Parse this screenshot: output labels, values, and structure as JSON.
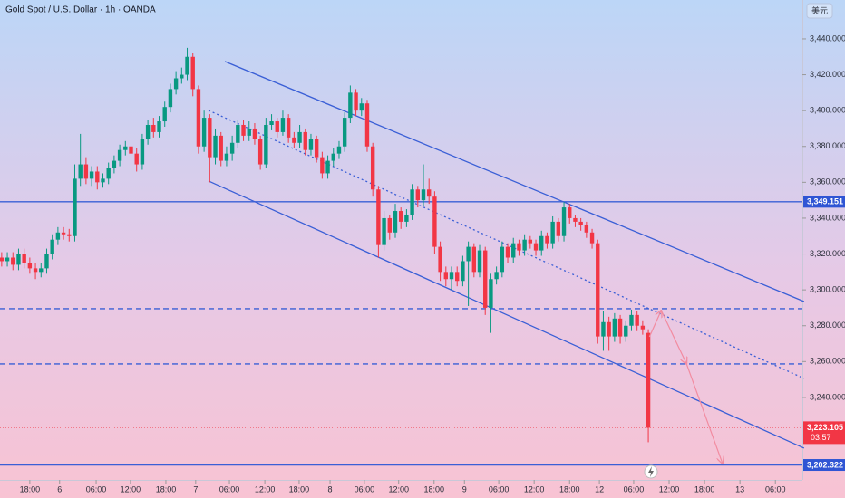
{
  "chart_data": {
    "type": "candlestick",
    "title": "Gold Spot / U.S. Dollar · 1h · OANDA",
    "currency": "美元",
    "up_color": "#089981",
    "down_color": "#f23645",
    "line_color": "#3a5fd6",
    "arrow_color": "#f28ba0",
    "xlim": [
      -5.3,
      137.4
    ],
    "ylim": [
      3194,
      3461.7
    ],
    "yticks": [
      {
        "value": 3240,
        "label": "3,240.000"
      },
      {
        "value": 3260,
        "label": "3,260.000"
      },
      {
        "value": 3280,
        "label": "3,280.000"
      },
      {
        "value": 3300,
        "label": "3,300.000"
      },
      {
        "value": 3320,
        "label": "3,320.000"
      },
      {
        "value": 3340,
        "label": "3,340.000"
      },
      {
        "value": 3360,
        "label": "3,360.000"
      },
      {
        "value": 3380,
        "label": "3,380.000"
      },
      {
        "value": 3400,
        "label": "3,400.000"
      },
      {
        "value": 3420,
        "label": "3,420.000"
      },
      {
        "value": 3440,
        "label": "3,440.000"
      }
    ],
    "xticks": [
      {
        "value": 0,
        "label": "18:00"
      },
      {
        "value": 5.3,
        "label": "6"
      },
      {
        "value": 11.8,
        "label": "06:00"
      },
      {
        "value": 17.9,
        "label": "12:00"
      },
      {
        "value": 24.2,
        "label": "18:00"
      },
      {
        "value": 29.5,
        "label": "7"
      },
      {
        "value": 35.5,
        "label": "06:00"
      },
      {
        "value": 41.8,
        "label": "12:00"
      },
      {
        "value": 47.9,
        "label": "18:00"
      },
      {
        "value": 53.4,
        "label": "8"
      },
      {
        "value": 59.5,
        "label": "06:00"
      },
      {
        "value": 65.6,
        "label": "12:00"
      },
      {
        "value": 71.9,
        "label": "18:00"
      },
      {
        "value": 77.3,
        "label": "9"
      },
      {
        "value": 83.4,
        "label": "06:00"
      },
      {
        "value": 89.7,
        "label": "12:00"
      },
      {
        "value": 96,
        "label": "18:00"
      },
      {
        "value": 101.3,
        "label": "12"
      },
      {
        "value": 107.4,
        "label": "06:00"
      },
      {
        "value": 113.7,
        "label": "12:00"
      },
      {
        "value": 120,
        "label": "18:00"
      },
      {
        "value": 126.3,
        "label": "13"
      },
      {
        "value": 132.6,
        "label": "06:00"
      }
    ],
    "x": [
      -5,
      -4,
      -3,
      -2,
      -1,
      0,
      1,
      2,
      3,
      4,
      5,
      6,
      7,
      8,
      9,
      10,
      11,
      12,
      13,
      14,
      15,
      16,
      17,
      18,
      19,
      20,
      21,
      22,
      23,
      24,
      25,
      26,
      27,
      28,
      29,
      30,
      31,
      32,
      33,
      34,
      35,
      36,
      37,
      38,
      39,
      40,
      41,
      42,
      43,
      44,
      45,
      46,
      47,
      48,
      49,
      50,
      51,
      52,
      53,
      54,
      55,
      56,
      57,
      58,
      59,
      60,
      61,
      62,
      63,
      64,
      65,
      66,
      67,
      68,
      69,
      70,
      71,
      72,
      73,
      74,
      75,
      76,
      77,
      78,
      79,
      80,
      81,
      82,
      83,
      84,
      85,
      86,
      87,
      88,
      89,
      90,
      91,
      92,
      93,
      94,
      95,
      96,
      97,
      98,
      99,
      100,
      101,
      102,
      103,
      104,
      105,
      106,
      107,
      108,
      109,
      110
    ],
    "open": [
      3318,
      3316,
      3318,
      3314,
      3320,
      3315,
      3312,
      3310,
      3312,
      3320,
      3328,
      3332,
      3331,
      3330,
      3362,
      3370,
      3362,
      3366,
      3360,
      3362,
      3368,
      3372,
      3378,
      3380,
      3376,
      3370,
      3384,
      3392,
      3388,
      3394,
      3402,
      3412,
      3418,
      3420,
      3430,
      3412,
      3380,
      3396,
      3374,
      3386,
      3372,
      3376,
      3382,
      3392,
      3386,
      3390,
      3384,
      3370,
      3392,
      3394,
      3388,
      3396,
      3385,
      3382,
      3388,
      3378,
      3384,
      3374,
      3365,
      3372,
      3376,
      3380,
      3396,
      3410,
      3400,
      3404,
      3380,
      3356,
      3325,
      3340,
      3332,
      3344,
      3338,
      3342,
      3356,
      3350,
      3356,
      3352,
      3324,
      3310,
      3306,
      3310,
      3305,
      3316,
      3324,
      3310,
      3322,
      3290,
      3306,
      3310,
      3324,
      3318,
      3326,
      3322,
      3328,
      3326,
      3322,
      3330,
      3326,
      3338,
      3330,
      3346,
      3340,
      3338,
      3336,
      3332,
      3326,
      3274,
      3282,
      3274,
      3284,
      3274,
      3280,
      3286,
      3280,
      3276
    ],
    "high": [
      3321,
      3321,
      3321,
      3323,
      3323,
      3318,
      3315,
      3315,
      3323,
      3331,
      3335,
      3335,
      3334,
      3370,
      3387,
      3374,
      3369,
      3369,
      3365,
      3371,
      3375,
      3381,
      3383,
      3383,
      3379,
      3387,
      3395,
      3396,
      3397,
      3405,
      3415,
      3422,
      3424,
      3435,
      3432,
      3414,
      3400,
      3398,
      3390,
      3388,
      3380,
      3386,
      3395,
      3395,
      3394,
      3393,
      3386,
      3396,
      3398,
      3396,
      3400,
      3398,
      3388,
      3392,
      3390,
      3387,
      3386,
      3377,
      3375,
      3379,
      3383,
      3399,
      3414,
      3412,
      3407,
      3406,
      3382,
      3358,
      3344,
      3342,
      3348,
      3346,
      3345,
      3359,
      3358,
      3370,
      3362,
      3355,
      3327,
      3313,
      3313,
      3313,
      3319,
      3327,
      3326,
      3325,
      3324,
      3309,
      3313,
      3327,
      3326,
      3329,
      3328,
      3331,
      3330,
      3328,
      3333,
      3332,
      3341,
      3340,
      3349,
      3348,
      3342,
      3340,
      3338,
      3334,
      3328,
      3288,
      3285,
      3287,
      3286,
      3283,
      3289,
      3288,
      3283,
      3278
    ],
    "low": [
      3313,
      3313,
      3311,
      3311,
      3312,
      3309,
      3306,
      3307,
      3309,
      3317,
      3325,
      3328,
      3327,
      3327,
      3358,
      3359,
      3358,
      3356,
      3357,
      3359,
      3365,
      3369,
      3375,
      3373,
      3366,
      3367,
      3381,
      3385,
      3385,
      3391,
      3399,
      3409,
      3415,
      3417,
      3408,
      3376,
      3377,
      3360,
      3370,
      3369,
      3369,
      3372,
      3379,
      3383,
      3383,
      3381,
      3367,
      3368,
      3389,
      3385,
      3386,
      3382,
      3379,
      3379,
      3375,
      3375,
      3371,
      3362,
      3362,
      3369,
      3373,
      3377,
      3393,
      3397,
      3397,
      3377,
      3352,
      3318,
      3322,
      3328,
      3329,
      3334,
      3335,
      3339,
      3346,
      3347,
      3348,
      3320,
      3305,
      3302,
      3300,
      3302,
      3302,
      3291,
      3307,
      3307,
      3286,
      3276,
      3303,
      3307,
      3315,
      3315,
      3319,
      3319,
      3323,
      3319,
      3319,
      3323,
      3323,
      3327,
      3327,
      3337,
      3335,
      3333,
      3329,
      3323,
      3270,
      3266,
      3266,
      3271,
      3270,
      3271,
      3277,
      3277,
      3275,
      3215
    ],
    "close": [
      3316,
      3318,
      3314,
      3320,
      3315,
      3312,
      3310,
      3312,
      3320,
      3328,
      3332,
      3331,
      3330,
      3362,
      3370,
      3362,
      3366,
      3360,
      3362,
      3368,
      3372,
      3378,
      3380,
      3376,
      3370,
      3384,
      3392,
      3388,
      3394,
      3402,
      3412,
      3418,
      3420,
      3430,
      3412,
      3380,
      3396,
      3374,
      3386,
      3372,
      3376,
      3382,
      3392,
      3386,
      3390,
      3384,
      3370,
      3392,
      3394,
      3388,
      3396,
      3385,
      3382,
      3388,
      3378,
      3384,
      3374,
      3365,
      3372,
      3376,
      3380,
      3396,
      3410,
      3400,
      3404,
      3380,
      3356,
      3325,
      3340,
      3332,
      3344,
      3338,
      3342,
      3356,
      3350,
      3356,
      3352,
      3324,
      3310,
      3306,
      3310,
      3305,
      3316,
      3324,
      3310,
      3322,
      3290,
      3306,
      3310,
      3324,
      3318,
      3326,
      3322,
      3328,
      3326,
      3322,
      3330,
      3326,
      3338,
      3330,
      3346,
      3340,
      3338,
      3336,
      3332,
      3326,
      3274,
      3282,
      3274,
      3284,
      3274,
      3280,
      3286,
      3280,
      3278,
      3223.105
    ],
    "levels": [
      {
        "value": 3349.151,
        "label": "3,349.151",
        "dashed": false
      },
      {
        "value": 3202.322,
        "label": "3,202.322",
        "dashed": false
      },
      {
        "value": 3289.5,
        "dashed": true
      },
      {
        "value": 3258.7,
        "dashed": true
      }
    ],
    "current_price": {
      "value": 3223.105,
      "label": "3,223.105",
      "countdown": "03:57"
    },
    "trendlines": [
      {
        "x": [
          34.7,
          137.7
        ],
        "y": [
          3427.4,
          3293.5
        ],
        "dotted": false
      },
      {
        "x": [
          31.8,
          137.7
        ],
        "y": [
          3400.1,
          3250.6
        ],
        "dotted": true
      },
      {
        "x": [
          31.8,
          137.7
        ],
        "y": [
          3360.7,
          3211.7
        ],
        "dotted": false
      }
    ],
    "arrow": {
      "x": [
        110.2,
        112.3,
        116.8,
        123.2
      ],
      "y": [
        3273.8,
        3288.5,
        3258.7,
        3203.1
      ]
    }
  }
}
